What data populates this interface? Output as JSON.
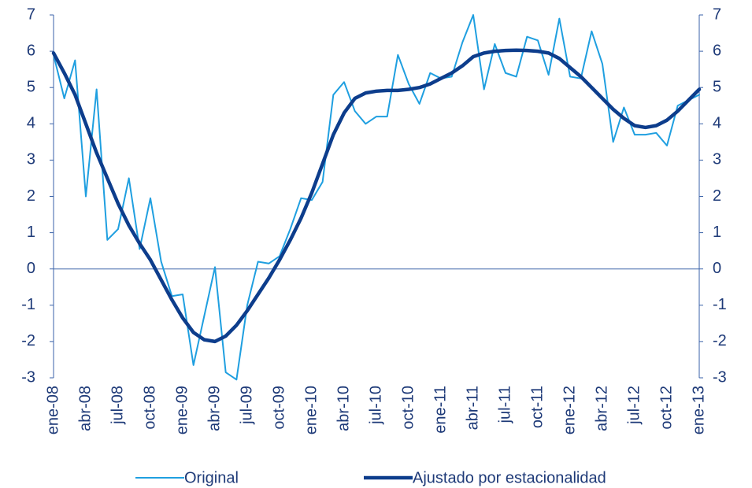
{
  "chart_data": {
    "type": "line",
    "categories": [
      "ene-08",
      null,
      null,
      "abr-08",
      null,
      null,
      "jul-08",
      null,
      null,
      "oct-08",
      null,
      null,
      "ene-09",
      null,
      null,
      "abr-09",
      null,
      null,
      "jul-09",
      null,
      null,
      "oct-09",
      null,
      null,
      "ene-10",
      null,
      null,
      "abr-10",
      null,
      null,
      "jul-10",
      null,
      null,
      "oct-10",
      null,
      null,
      "ene-11",
      null,
      null,
      "abr-11",
      null,
      null,
      "jul-11",
      null,
      null,
      "oct-11",
      null,
      null,
      "ene-12",
      null,
      null,
      "abr-12",
      null,
      null,
      "jul-12",
      null,
      null,
      "oct-12",
      null,
      null,
      "ene-13"
    ],
    "series": [
      {
        "name": "Original",
        "color": "#1f9fe0",
        "width": 2,
        "values": [
          5.9,
          4.7,
          5.75,
          2.0,
          4.95,
          0.8,
          1.1,
          2.5,
          0.55,
          1.95,
          0.2,
          -0.75,
          -0.7,
          -2.65,
          -1.3,
          0.05,
          -2.85,
          -3.05,
          -1.0,
          0.2,
          0.15,
          0.35,
          1.1,
          1.95,
          1.9,
          2.4,
          4.8,
          5.15,
          4.35,
          4.0,
          4.2,
          4.2,
          5.9,
          5.1,
          4.55,
          5.4,
          5.25,
          5.3,
          6.25,
          7.0,
          4.95,
          6.2,
          5.4,
          5.3,
          6.4,
          6.3,
          5.35,
          6.9,
          5.3,
          5.25,
          6.55,
          5.65,
          3.5,
          4.45,
          3.7,
          3.7,
          3.75,
          3.4,
          4.5,
          4.65,
          4.8
        ]
      },
      {
        "name": "Ajustado por estacionalidad",
        "color": "#0d3d8c",
        "width": 4.5,
        "values": [
          5.95,
          5.4,
          4.8,
          4.0,
          3.2,
          2.5,
          1.8,
          1.2,
          0.7,
          0.25,
          -0.3,
          -0.85,
          -1.35,
          -1.75,
          -1.95,
          -2.0,
          -1.85,
          -1.55,
          -1.15,
          -0.7,
          -0.25,
          0.25,
          0.8,
          1.4,
          2.1,
          2.9,
          3.7,
          4.3,
          4.7,
          4.85,
          4.9,
          4.92,
          4.92,
          4.95,
          5.0,
          5.1,
          5.25,
          5.4,
          5.6,
          5.85,
          5.95,
          6.0,
          6.02,
          6.03,
          6.02,
          6.0,
          5.95,
          5.8,
          5.55,
          5.3,
          5.0,
          4.7,
          4.4,
          4.15,
          3.95,
          3.9,
          3.95,
          4.1,
          4.35,
          4.65,
          4.95
        ]
      }
    ],
    "ylim": [
      -3,
      7
    ],
    "yticks": [
      -3,
      -2,
      -1,
      0,
      1,
      2,
      3,
      4,
      5,
      6,
      7
    ],
    "y2lim": [
      -3,
      7
    ],
    "y2ticks": [
      -3,
      -2,
      -1,
      0,
      1,
      2,
      3,
      4,
      5,
      6,
      7
    ],
    "grid": false,
    "legend": "bottom"
  }
}
